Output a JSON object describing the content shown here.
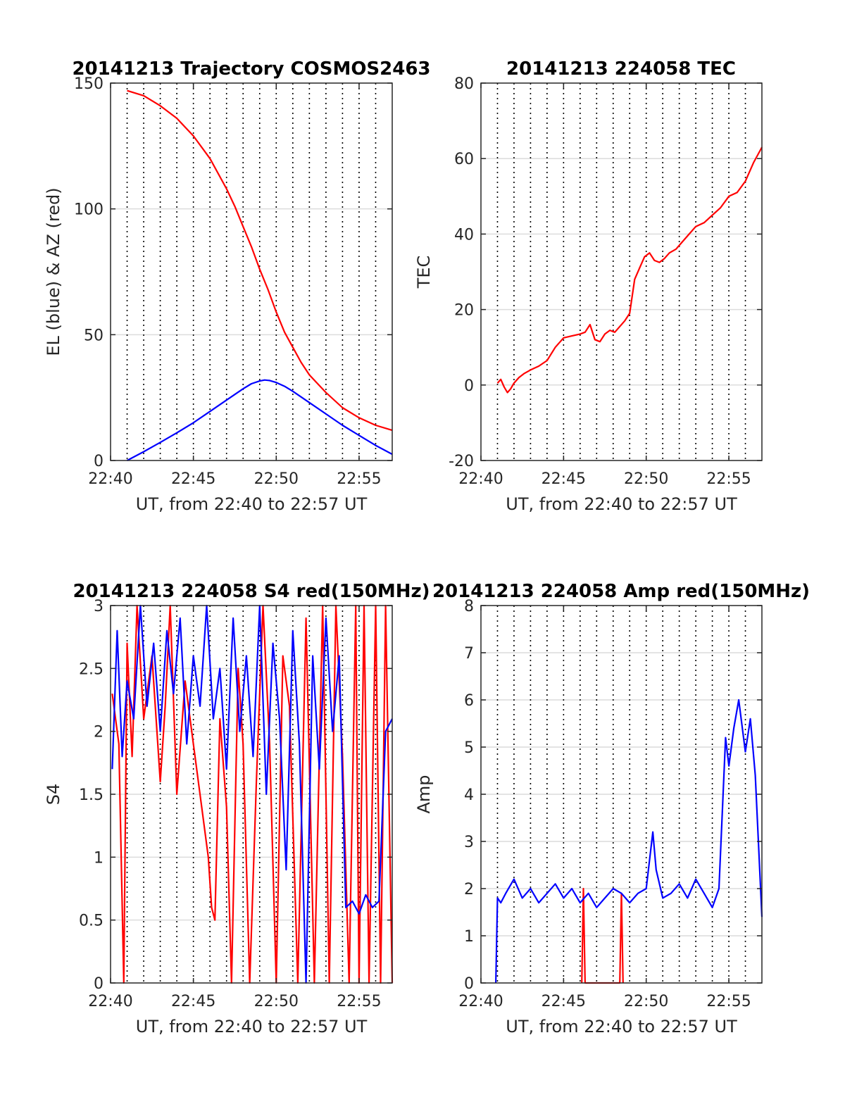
{
  "chart_data": [
    {
      "id": "p1",
      "type": "line",
      "title": "20141213 Trajectory COSMOS2463",
      "xlabel": "UT, from 22:40 to 22:57 UT",
      "ylabel": "EL (blue) & AZ (red)",
      "x_unit": "minutes after 22:40",
      "xlim": [
        0,
        17
      ],
      "ylim": [
        0,
        150
      ],
      "xticks": [
        0,
        5,
        10,
        15
      ],
      "xtick_labels": [
        "22:40",
        "22:45",
        "22:50",
        "22:55"
      ],
      "yticks": [
        0,
        50,
        100,
        150
      ],
      "ytick_labels": [
        "0",
        "50",
        "100",
        "150"
      ],
      "series": [
        {
          "color": "#ff0000",
          "x": [
            1,
            2,
            3,
            4,
            5,
            6,
            7,
            7.5,
            8,
            8.5,
            9,
            9.5,
            10,
            10.5,
            11,
            11.5,
            12,
            13,
            14,
            15,
            16,
            17
          ],
          "y": [
            147,
            145,
            141,
            136,
            129,
            120,
            108,
            101,
            93,
            85,
            76,
            68,
            59,
            51,
            45,
            39,
            34,
            27,
            21,
            17,
            14,
            12
          ]
        },
        {
          "color": "#0000ff",
          "x": [
            1,
            2,
            3,
            4,
            5,
            6,
            7,
            8,
            8.5,
            9,
            9.3,
            9.6,
            10,
            10.5,
            11,
            12,
            13,
            14,
            15,
            16,
            17
          ],
          "y": [
            0,
            3.5,
            7.2,
            11,
            15,
            19.5,
            24,
            28.5,
            30.5,
            31.6,
            32,
            31.8,
            31,
            29.5,
            27.5,
            23,
            18.5,
            14,
            10,
            6,
            2.5
          ]
        }
      ]
    },
    {
      "id": "p2",
      "type": "line",
      "title": "20141213 224058 TEC",
      "xlabel": "UT, from 22:40 to 22:57 UT",
      "ylabel": "TEC",
      "x_unit": "minutes after 22:40",
      "xlim": [
        0,
        17
      ],
      "ylim": [
        -20,
        80
      ],
      "xticks": [
        0,
        5,
        10,
        15
      ],
      "xtick_labels": [
        "22:40",
        "22:45",
        "22:50",
        "22:55"
      ],
      "yticks": [
        -20,
        0,
        20,
        40,
        60,
        80
      ],
      "ytick_labels": [
        "-20",
        "0",
        "20",
        "40",
        "60",
        "80"
      ],
      "series": [
        {
          "color": "#ff0000",
          "x": [
            1.0,
            1.2,
            1.4,
            1.6,
            1.8,
            2.0,
            2.3,
            2.6,
            3.0,
            3.5,
            4.0,
            4.5,
            5.0,
            5.5,
            6.0,
            6.3,
            6.6,
            6.9,
            7.2,
            7.5,
            7.8,
            8.1,
            8.4,
            8.7,
            9.0,
            9.3,
            9.6,
            9.9,
            10.2,
            10.5,
            10.8,
            11.1,
            11.4,
            11.8,
            12.2,
            12.6,
            13.0,
            13.5,
            14.0,
            14.5,
            15.0,
            15.5,
            16.0,
            16.5,
            17.0
          ],
          "y": [
            0.5,
            1.5,
            -0.5,
            -2.0,
            -1.0,
            0.5,
            2.0,
            3.0,
            4.0,
            5.0,
            6.5,
            10.0,
            12.5,
            13.0,
            13.5,
            14.0,
            16.0,
            12.0,
            11.5,
            13.5,
            14.5,
            14.0,
            15.5,
            17.0,
            19.0,
            28.0,
            31.0,
            34.0,
            35.0,
            33.0,
            32.5,
            33.5,
            35.0,
            36.0,
            38.0,
            40.0,
            42.0,
            43.0,
            45.0,
            47.0,
            50.0,
            51.0,
            54.0,
            59.0,
            63.0
          ]
        }
      ]
    },
    {
      "id": "p3",
      "type": "line",
      "title": "20141213 224058 S4 red(150MHz)",
      "xlabel": "UT, from 22:40 to 22:57 UT",
      "ylabel": "S4",
      "x_unit": "minutes after 22:40",
      "xlim": [
        0,
        17
      ],
      "ylim": [
        0,
        3
      ],
      "xticks": [
        0,
        5,
        10,
        15
      ],
      "xtick_labels": [
        "22:40",
        "22:45",
        "22:50",
        "22:55"
      ],
      "yticks": [
        0,
        0.5,
        1,
        1.5,
        2,
        2.5,
        3
      ],
      "ytick_labels": [
        "0",
        "0.5",
        "1",
        "1.5",
        "2",
        "2.5",
        "3"
      ],
      "series": [
        {
          "color": "#ff0000",
          "x": [
            0.1,
            0.5,
            0.8,
            1.0,
            1.3,
            1.6,
            2.0,
            2.5,
            3.0,
            3.3,
            3.6,
            4.0,
            4.5,
            5.0,
            5.5,
            5.9,
            6.1,
            6.3,
            6.6,
            7.0,
            7.3,
            7.7,
            8.0,
            8.4,
            8.8,
            9.2,
            9.6,
            10.0,
            10.4,
            10.8,
            11.3,
            11.8,
            12.3,
            12.8,
            13.2,
            13.6,
            14.0,
            14.4,
            14.8,
            15.0,
            15.3,
            15.6,
            16.0,
            16.3,
            16.6,
            17.0
          ],
          "y": [
            2.3,
            1.9,
            0.0,
            2.7,
            1.8,
            3.0,
            2.1,
            2.6,
            1.6,
            2.2,
            3.0,
            1.5,
            2.4,
            1.9,
            1.4,
            1.0,
            0.6,
            0.5,
            2.1,
            1.4,
            0.0,
            2.5,
            1.9,
            0.0,
            1.6,
            3.0,
            1.9,
            0.0,
            2.6,
            2.2,
            0.0,
            2.9,
            0.0,
            3.0,
            0.0,
            3.0,
            1.8,
            0.0,
            3.0,
            0.0,
            3.0,
            0.0,
            3.0,
            0.0,
            3.0,
            0.0
          ]
        },
        {
          "color": "#0000ff",
          "x": [
            0.1,
            0.4,
            0.7,
            1.0,
            1.4,
            1.8,
            2.2,
            2.6,
            3.0,
            3.4,
            3.8,
            4.2,
            4.6,
            5.0,
            5.4,
            5.8,
            6.2,
            6.6,
            7.0,
            7.4,
            7.8,
            8.2,
            8.6,
            9.0,
            9.4,
            9.8,
            10.2,
            10.6,
            11.0,
            11.4,
            11.8,
            12.2,
            12.6,
            13.0,
            13.4,
            13.8,
            14.2,
            14.6,
            15.0,
            15.4,
            15.8,
            16.2,
            16.6,
            17.0
          ],
          "y": [
            1.7,
            2.8,
            1.8,
            2.4,
            2.1,
            3.0,
            2.2,
            2.7,
            2.0,
            2.8,
            2.3,
            2.9,
            1.9,
            2.6,
            2.2,
            3.0,
            2.1,
            2.5,
            1.7,
            2.9,
            2.0,
            2.6,
            1.8,
            3.0,
            1.5,
            2.7,
            2.1,
            0.9,
            2.8,
            1.9,
            0.0,
            2.6,
            1.7,
            2.9,
            2.0,
            2.6,
            0.6,
            0.65,
            0.55,
            0.7,
            0.6,
            0.65,
            2.0,
            2.1
          ]
        }
      ]
    },
    {
      "id": "p4",
      "type": "line",
      "title": "20141213 224058 Amp red(150MHz)",
      "xlabel": "UT, from 22:40 to 22:57 UT",
      "ylabel": "Amp",
      "x_unit": "minutes after 22:40",
      "xlim": [
        0,
        17
      ],
      "ylim": [
        0,
        8
      ],
      "xticks": [
        0,
        5,
        10,
        15
      ],
      "xtick_labels": [
        "22:40",
        "22:45",
        "22:50",
        "22:55"
      ],
      "yticks": [
        0,
        1,
        2,
        3,
        4,
        5,
        6,
        7,
        8
      ],
      "ytick_labels": [
        "0",
        "1",
        "2",
        "3",
        "4",
        "5",
        "6",
        "7",
        "8"
      ],
      "series": [
        {
          "color": "#ff0000",
          "x": [
            6.1,
            6.2,
            6.3,
            8.4,
            8.5,
            8.6
          ],
          "y": [
            0.0,
            2.0,
            0.0,
            0.0,
            1.9,
            0.0
          ]
        },
        {
          "color": "#0000ff",
          "x": [
            0.9,
            1.0,
            1.2,
            1.5,
            2.0,
            2.5,
            3.0,
            3.5,
            4.0,
            4.5,
            5.0,
            5.5,
            6.0,
            6.5,
            7.0,
            7.5,
            8.0,
            8.5,
            9.0,
            9.5,
            10.0,
            10.4,
            10.6,
            11.0,
            11.5,
            12.0,
            12.5,
            13.0,
            13.5,
            14.0,
            14.4,
            14.8,
            15.0,
            15.3,
            15.6,
            16.0,
            16.3,
            16.6,
            17.0
          ],
          "y": [
            0.0,
            1.8,
            1.7,
            1.9,
            2.2,
            1.8,
            2.0,
            1.7,
            1.9,
            2.1,
            1.8,
            2.0,
            1.7,
            1.9,
            1.6,
            1.8,
            2.0,
            1.9,
            1.7,
            1.9,
            2.0,
            3.2,
            2.4,
            1.8,
            1.9,
            2.1,
            1.8,
            2.2,
            1.9,
            1.6,
            2.0,
            5.2,
            4.6,
            5.4,
            6.0,
            4.9,
            5.6,
            4.4,
            1.4
          ]
        }
      ]
    }
  ]
}
